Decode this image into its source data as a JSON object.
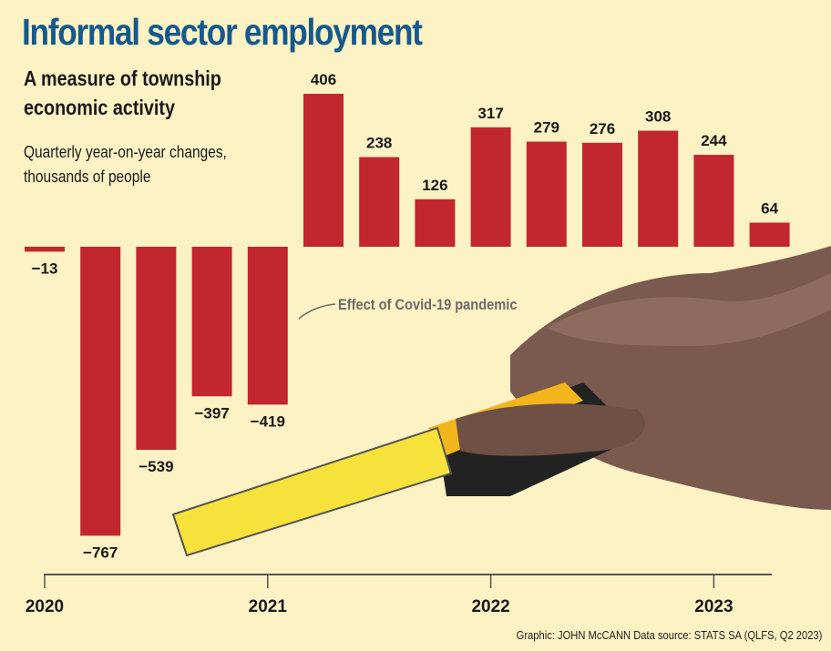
{
  "title": "Informal sector employment",
  "subtitle": "A measure of township economic activity",
  "description": "Quarterly year-on-year changes, thousands of people",
  "credit": "Graphic: JOHN McCANN  Data source: STATS SA (QLFS, Q2 2023)",
  "annotation": "Effect of Covid-19 pandemic",
  "colors": {
    "bar": "#c1272d",
    "title": "#17598c",
    "background": "#fdf2c4"
  },
  "chart_data": {
    "type": "bar",
    "title": "Informal sector employment",
    "ylabel": "",
    "xlabel": "",
    "year_ticks": [
      {
        "label": "2020",
        "index": 0
      },
      {
        "label": "2021",
        "index": 4
      },
      {
        "label": "2022",
        "index": 8
      },
      {
        "label": "2023",
        "index": 12
      }
    ],
    "values": [
      -13,
      -767,
      -539,
      -397,
      -419,
      406,
      238,
      126,
      317,
      279,
      276,
      308,
      244,
      64
    ],
    "value_labels": [
      "−13",
      "−767",
      "−539",
      "−397",
      "−419",
      "406",
      "238",
      "126",
      "317",
      "279",
      "276",
      "308",
      "244",
      "64"
    ],
    "ylim": [
      -767,
      406
    ],
    "grid": false,
    "legend": "none"
  }
}
